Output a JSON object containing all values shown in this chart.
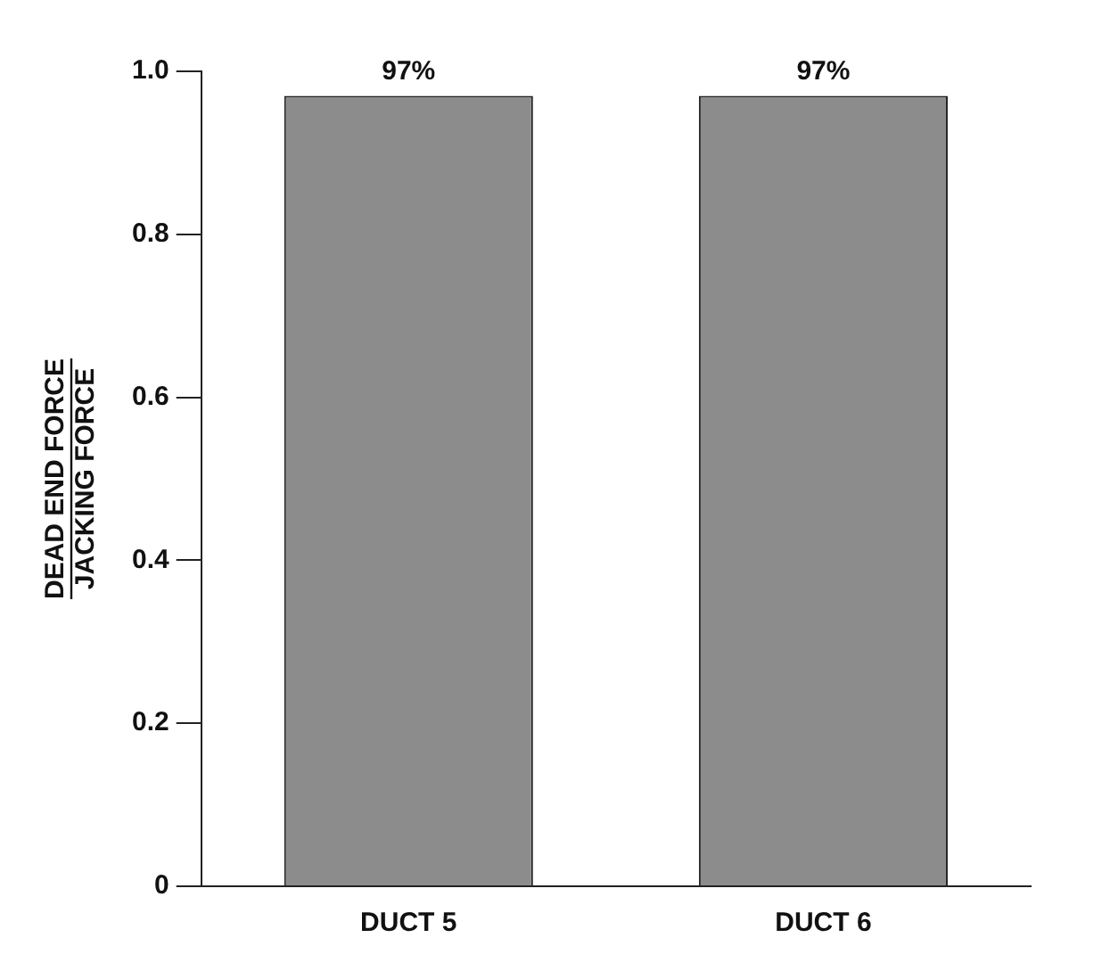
{
  "chart_data": {
    "type": "bar",
    "ylabel": "DEAD END FORCE\nJACKING FORCE",
    "categories": [
      "DUCT 5",
      "DUCT 6"
    ],
    "values": [
      0.97,
      0.97
    ],
    "value_labels": [
      "97%",
      "97%"
    ],
    "color": "#8c8c8c",
    "ylim": [
      0,
      1
    ],
    "yticks": [
      {
        "value": 0,
        "label": "0"
      },
      0.2,
      0.4,
      0.6,
      0.8,
      {
        "value": 1,
        "label": "1.0"
      }
    ],
    "grid": false,
    "legend": false
  }
}
